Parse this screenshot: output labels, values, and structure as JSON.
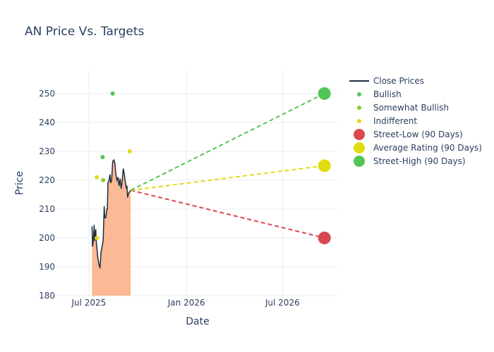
{
  "chart_data": {
    "type": "line",
    "title": "AN Price Vs. Targets",
    "xlabel": "Date",
    "ylabel": "Price",
    "ylim": [
      180,
      258
    ],
    "yticks": [
      180,
      190,
      200,
      210,
      220,
      230,
      240,
      250
    ],
    "xrange": [
      "2025-05-01",
      "2026-10-15"
    ],
    "xticks": [
      {
        "date": "2025-07-01",
        "label": "Jul 2025"
      },
      {
        "date": "2026-01-01",
        "label": "Jan 2026"
      },
      {
        "date": "2026-07-01",
        "label": "Jul 2026"
      }
    ],
    "series": [
      {
        "name": "Close Prices",
        "color": "#1f2d3d",
        "fill": "#fbb995",
        "points": [
          [
            "2025-07-07",
            204
          ],
          [
            "2025-07-08",
            197
          ],
          [
            "2025-07-09",
            198
          ],
          [
            "2025-07-10",
            201
          ],
          [
            "2025-07-11",
            204.5
          ],
          [
            "2025-07-12",
            199
          ],
          [
            "2025-07-14",
            203
          ],
          [
            "2025-07-15",
            199
          ],
          [
            "2025-07-16",
            197
          ],
          [
            "2025-07-18",
            193
          ],
          [
            "2025-07-20",
            191
          ],
          [
            "2025-07-22",
            189.5
          ],
          [
            "2025-07-24",
            195
          ],
          [
            "2025-07-26",
            197
          ],
          [
            "2025-07-28",
            199
          ],
          [
            "2025-07-30",
            211
          ],
          [
            "2025-07-31",
            207
          ],
          [
            "2025-08-02",
            207
          ],
          [
            "2025-08-04",
            210
          ],
          [
            "2025-08-05",
            210
          ],
          [
            "2025-08-06",
            219
          ],
          [
            "2025-08-08",
            220
          ],
          [
            "2025-08-10",
            222
          ],
          [
            "2025-08-11",
            219
          ],
          [
            "2025-08-13",
            220
          ],
          [
            "2025-08-15",
            226.5
          ],
          [
            "2025-08-17",
            227
          ],
          [
            "2025-08-19",
            226
          ],
          [
            "2025-08-21",
            222
          ],
          [
            "2025-08-23",
            220
          ],
          [
            "2025-08-25",
            221
          ],
          [
            "2025-08-27",
            218
          ],
          [
            "2025-08-29",
            220.5
          ],
          [
            "2025-08-31",
            217
          ],
          [
            "2025-09-02",
            220
          ],
          [
            "2025-09-04",
            224
          ],
          [
            "2025-09-06",
            222
          ],
          [
            "2025-09-08",
            219
          ],
          [
            "2025-09-10",
            217
          ],
          [
            "2025-09-11",
            218
          ],
          [
            "2025-09-12",
            214
          ],
          [
            "2025-09-14",
            215.5
          ],
          [
            "2025-09-16",
            216
          ],
          [
            "2025-09-18",
            216.5
          ]
        ]
      },
      {
        "name": "Bullish",
        "color": "#53c456",
        "points": [
          [
            "2025-07-27",
            228
          ],
          [
            "2025-08-15",
            250
          ]
        ]
      },
      {
        "name": "Somewhat Bullish",
        "color": "#8ccb2e",
        "points": [
          [
            "2025-07-28",
            220
          ]
        ]
      },
      {
        "name": "Indifferent",
        "color": "#e2db12",
        "points": [
          [
            "2025-07-16",
            221
          ],
          [
            "2025-07-16",
            200
          ],
          [
            "2025-09-16",
            230
          ]
        ]
      },
      {
        "name": "Street-Low (90 Days)",
        "color": "#d9484f",
        "from": [
          "2025-09-18",
          216.5
        ],
        "target": [
          "2026-09-18",
          200
        ]
      },
      {
        "name": "Average Rating (90 Days)",
        "color": "#e2db12",
        "from": [
          "2025-09-18",
          216.5
        ],
        "target": [
          "2026-09-18",
          225
        ]
      },
      {
        "name": "Street-High (90 Days)",
        "color": "#53c456",
        "from": [
          "2025-09-18",
          216.5
        ],
        "target": [
          "2026-09-18",
          250
        ]
      }
    ],
    "legend_position": "top-right"
  }
}
